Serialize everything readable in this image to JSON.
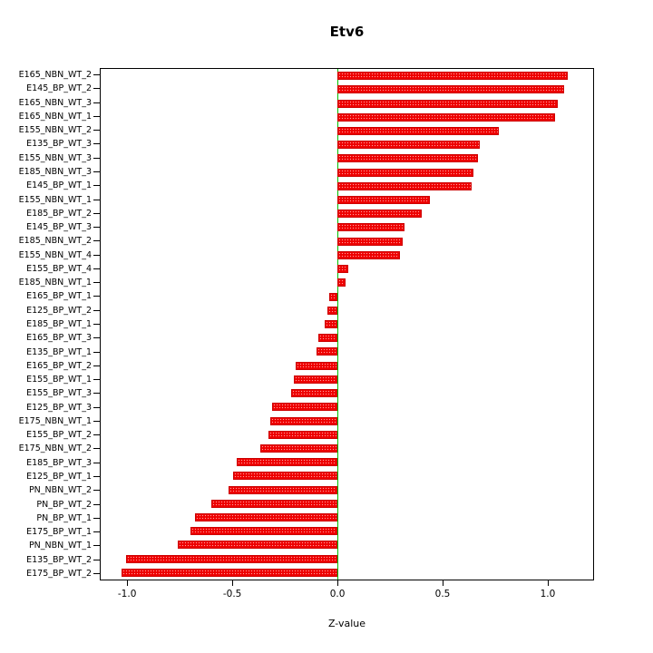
{
  "chart_data": {
    "type": "bar",
    "orientation": "horizontal",
    "title": "Etv6",
    "xlabel": "Z-value",
    "ylabel": "",
    "xlim": [
      -1.13,
      1.22
    ],
    "xticks": [
      -1.0,
      -0.5,
      0.0,
      0.5,
      1.0
    ],
    "xtick_labels": [
      "-1.0",
      "-0.5",
      "0.0",
      "0.5",
      "1.0"
    ],
    "bar_color": "#ee0000",
    "zero_line_color": "#00c000",
    "grid": false,
    "legend": false,
    "categories": [
      "E165_NBN_WT_2",
      "E145_BP_WT_2",
      "E165_NBN_WT_3",
      "E165_NBN_WT_1",
      "E155_NBN_WT_2",
      "E135_BP_WT_3",
      "E155_NBN_WT_3",
      "E185_NBN_WT_3",
      "E145_BP_WT_1",
      "E155_NBN_WT_1",
      "E185_BP_WT_2",
      "E145_BP_WT_3",
      "E185_NBN_WT_2",
      "E155_NBN_WT_4",
      "E155_BP_WT_4",
      "E185_NBN_WT_1",
      "E165_BP_WT_1",
      "E125_BP_WT_2",
      "E185_BP_WT_1",
      "E165_BP_WT_3",
      "E135_BP_WT_1",
      "E165_BP_WT_2",
      "E155_BP_WT_1",
      "E155_BP_WT_3",
      "E125_BP_WT_3",
      "E175_NBN_WT_1",
      "E155_BP_WT_2",
      "E175_NBN_WT_2",
      "E185_BP_WT_3",
      "E125_BP_WT_1",
      "PN_NBN_WT_2",
      "PN_BP_WT_2",
      "PN_BP_WT_1",
      "E175_BP_WT_1",
      "PN_NBN_WT_1",
      "E135_BP_WT_2",
      "E175_BP_WT_2"
    ],
    "values": [
      1.1,
      1.08,
      1.05,
      1.04,
      0.77,
      0.68,
      0.67,
      0.65,
      0.64,
      0.44,
      0.4,
      0.32,
      0.31,
      0.3,
      0.05,
      0.04,
      -0.04,
      -0.05,
      -0.06,
      -0.09,
      -0.1,
      -0.2,
      -0.21,
      -0.22,
      -0.31,
      -0.32,
      -0.33,
      -0.37,
      -0.48,
      -0.5,
      -0.52,
      -0.6,
      -0.68,
      -0.7,
      -0.76,
      -1.01,
      -1.03
    ]
  }
}
